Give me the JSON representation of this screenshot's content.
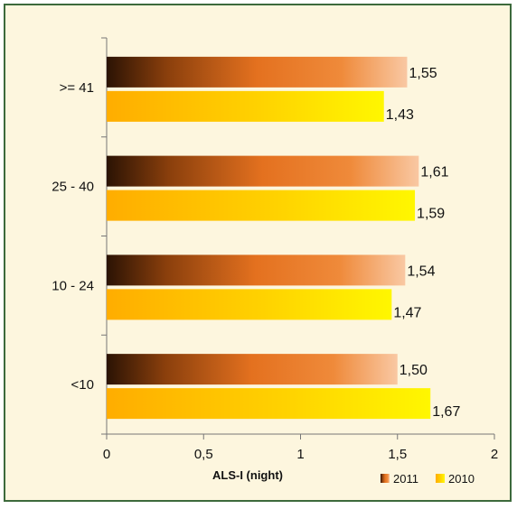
{
  "chart_data": {
    "type": "bar",
    "orientation": "horizontal",
    "categories": [
      ">= 41",
      "25 - 40",
      "10 - 24",
      "<10"
    ],
    "series": [
      {
        "name": "2011",
        "values": [
          1.55,
          1.61,
          1.54,
          1.5
        ],
        "value_labels": [
          "1,55",
          "1,61",
          "1,54",
          "1,50"
        ],
        "color": "#e87722"
      },
      {
        "name": "2010",
        "values": [
          1.43,
          1.59,
          1.47,
          1.67
        ],
        "value_labels": [
          "1,43",
          "1,59",
          "1,47",
          "1,67"
        ],
        "color": "#ffd800"
      }
    ],
    "xlabel": "ALS-I (night)",
    "xlim": [
      0,
      2
    ],
    "x_ticks": [
      0,
      0.5,
      1,
      1.5,
      2
    ],
    "x_tick_labels": [
      "0",
      "0,5",
      "1",
      "1,5",
      "2"
    ],
    "grid": false,
    "legend_position": "bottom-right",
    "background_color": "#fdf6de",
    "border_color": "#3d6a3c"
  }
}
